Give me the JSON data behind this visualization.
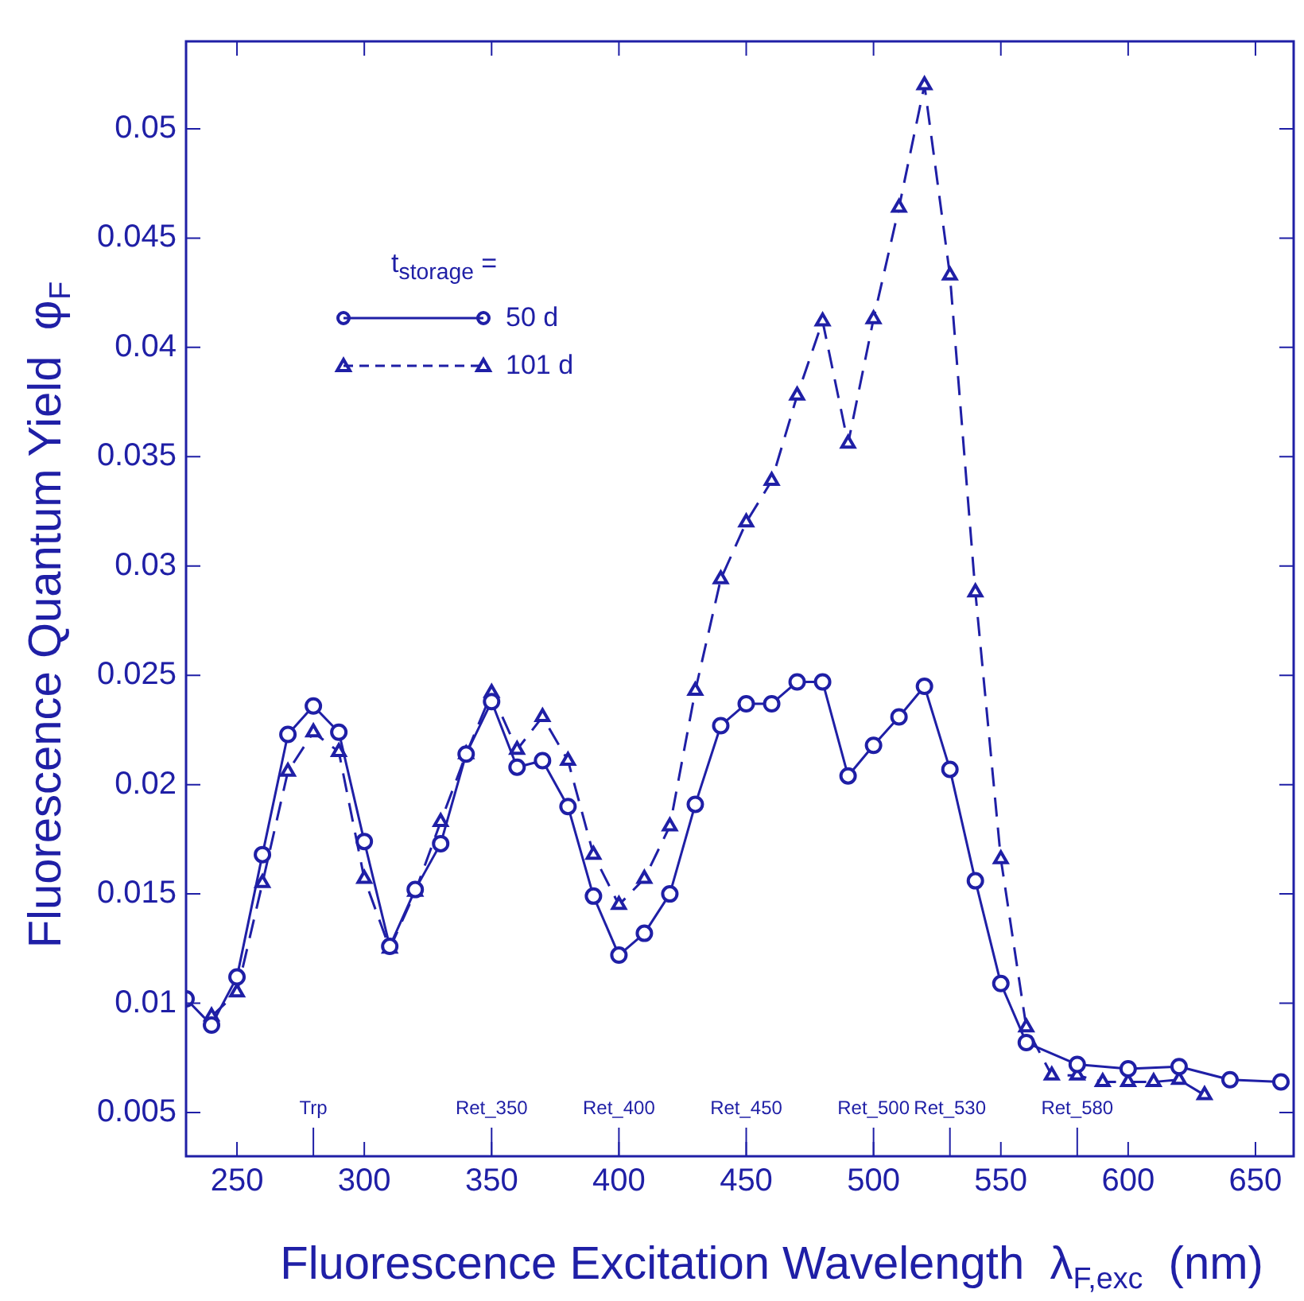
{
  "chart_data": {
    "type": "line",
    "xlabel": "Fluorescence Excitation Wavelength  λ$_{F,exc}$  (nm)",
    "ylabel": "Fluorescence Quantum Yield  φ$_{F}$",
    "legend_title": "t$_{storage}$ =",
    "legend": "top left",
    "grid": false,
    "xlim": [
      230,
      665
    ],
    "xticks": [
      250,
      300,
      350,
      400,
      450,
      500,
      550,
      600,
      650
    ],
    "ylim": [
      0.003,
      0.054
    ],
    "yticks": [
      0.005,
      0.01,
      0.015,
      0.02,
      0.025,
      0.03,
      0.035,
      0.04,
      0.045,
      0.05
    ],
    "series": [
      {
        "name": "50 d",
        "color": "#1f1fa6",
        "marker": "circle",
        "line_style": "solid",
        "x": [
          230,
          240,
          250,
          260,
          270,
          280,
          290,
          300,
          310,
          320,
          330,
          340,
          350,
          360,
          370,
          380,
          390,
          400,
          410,
          420,
          430,
          440,
          450,
          460,
          470,
          480,
          490,
          500,
          510,
          520,
          530,
          540,
          550,
          560,
          580,
          600,
          620,
          640,
          660
        ],
        "values": [
          0.0102,
          0.009,
          0.0112,
          0.0168,
          0.0223,
          0.0236,
          0.0224,
          0.0174,
          0.0126,
          0.0152,
          0.0173,
          0.0214,
          0.0238,
          0.0208,
          0.0211,
          0.019,
          0.0149,
          0.0122,
          0.0132,
          0.015,
          0.0191,
          0.0227,
          0.0237,
          0.0237,
          0.0247,
          0.0247,
          0.0204,
          0.0218,
          0.0231,
          0.0245,
          0.0207,
          0.0156,
          0.0109,
          0.0082,
          0.0072,
          0.007,
          0.0071,
          0.0065,
          0.0064
        ]
      },
      {
        "name": "101 d",
        "color": "#1f1fa6",
        "marker": "triangle",
        "line_style": "dashed",
        "x": [
          240,
          250,
          260,
          270,
          280,
          290,
          300,
          310,
          320,
          330,
          340,
          350,
          360,
          370,
          380,
          390,
          400,
          410,
          420,
          430,
          440,
          450,
          460,
          470,
          480,
          490,
          500,
          510,
          520,
          530,
          540,
          550,
          560,
          570,
          580,
          590,
          600,
          610,
          620,
          630
        ],
        "values": [
          0.0094,
          0.0105,
          0.0155,
          0.0206,
          0.0224,
          0.0215,
          0.0157,
          0.0125,
          0.0151,
          0.0183,
          0.0214,
          0.0242,
          0.0216,
          0.0231,
          0.0211,
          0.0168,
          0.0145,
          0.0157,
          0.0181,
          0.0243,
          0.0294,
          0.032,
          0.0339,
          0.0378,
          0.0412,
          0.0356,
          0.0413,
          0.0464,
          0.052,
          0.0433,
          0.0288,
          0.0166,
          0.0089,
          0.0067,
          0.0067,
          0.0064,
          0.0064,
          0.0064,
          0.0065,
          0.0058
        ]
      }
    ],
    "ref_lines": [
      {
        "axis": "x",
        "value": 280,
        "label": "Trp"
      },
      {
        "axis": "x",
        "value": 350,
        "label": "Ret_350"
      },
      {
        "axis": "x",
        "value": 400,
        "label": "Ret_400"
      },
      {
        "axis": "x",
        "value": 450,
        "label": "Ret_450"
      },
      {
        "axis": "x",
        "value": 500,
        "label": "Ret_500"
      },
      {
        "axis": "x",
        "value": 530,
        "label": "Ret_530"
      },
      {
        "axis": "x",
        "value": 580,
        "label": "Ret_580"
      }
    ]
  }
}
